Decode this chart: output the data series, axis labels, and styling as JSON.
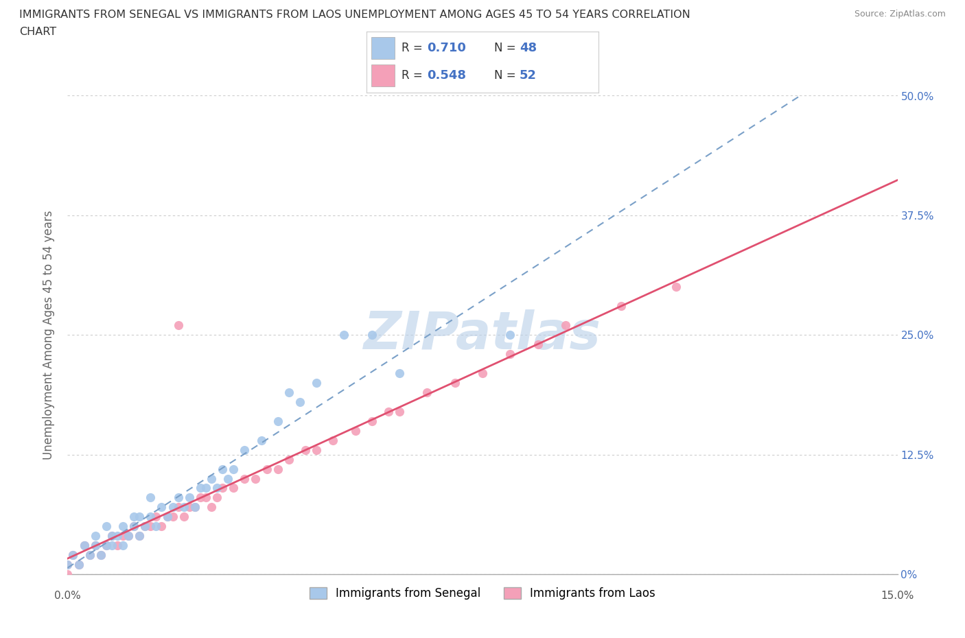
{
  "title_line1": "IMMIGRANTS FROM SENEGAL VS IMMIGRANTS FROM LAOS UNEMPLOYMENT AMONG AGES 45 TO 54 YEARS CORRELATION",
  "title_line2": "CHART",
  "source": "Source: ZipAtlas.com",
  "ylabel": "Unemployment Among Ages 45 to 54 years",
  "xlim": [
    -0.002,
    0.155
  ],
  "ylim": [
    -0.01,
    0.52
  ],
  "plot_xlim": [
    0.0,
    0.15
  ],
  "plot_ylim": [
    0.0,
    0.5
  ],
  "xtick_positions": [
    0.0,
    0.15
  ],
  "xticklabels": [
    "0.0%",
    "15.0%"
  ],
  "yticks": [
    0.0,
    0.125,
    0.25,
    0.375,
    0.5
  ],
  "yticklabels_right": [
    "0%",
    "12.5%",
    "25.0%",
    "37.5%",
    "50.0%"
  ],
  "senegal_marker_color": "#a8c8ea",
  "laos_marker_color": "#f4a0b8",
  "senegal_trend_color": "#4472c4",
  "laos_trend_color": "#e05070",
  "senegal_R": 0.71,
  "senegal_N": 48,
  "laos_R": 0.548,
  "laos_N": 52,
  "watermark": "ZIPatlas",
  "watermark_color": "#b8cfe8",
  "background_color": "#ffffff",
  "grid_color": "#cccccc",
  "senegal_x": [
    0.0,
    0.001,
    0.002,
    0.003,
    0.004,
    0.005,
    0.005,
    0.006,
    0.007,
    0.007,
    0.008,
    0.008,
    0.009,
    0.01,
    0.01,
    0.011,
    0.012,
    0.012,
    0.013,
    0.013,
    0.014,
    0.015,
    0.015,
    0.016,
    0.017,
    0.018,
    0.019,
    0.02,
    0.021,
    0.022,
    0.023,
    0.024,
    0.025,
    0.026,
    0.027,
    0.028,
    0.029,
    0.03,
    0.032,
    0.035,
    0.038,
    0.04,
    0.042,
    0.045,
    0.05,
    0.055,
    0.06,
    0.08
  ],
  "senegal_y": [
    0.01,
    0.02,
    0.01,
    0.03,
    0.02,
    0.03,
    0.04,
    0.02,
    0.03,
    0.05,
    0.03,
    0.04,
    0.04,
    0.05,
    0.03,
    0.04,
    0.05,
    0.06,
    0.04,
    0.06,
    0.05,
    0.06,
    0.08,
    0.05,
    0.07,
    0.06,
    0.07,
    0.08,
    0.07,
    0.08,
    0.07,
    0.09,
    0.09,
    0.1,
    0.09,
    0.11,
    0.1,
    0.11,
    0.13,
    0.14,
    0.16,
    0.19,
    0.18,
    0.2,
    0.25,
    0.25,
    0.21,
    0.25
  ],
  "laos_x": [
    0.0,
    0.0,
    0.001,
    0.002,
    0.003,
    0.004,
    0.005,
    0.006,
    0.007,
    0.008,
    0.009,
    0.01,
    0.011,
    0.012,
    0.013,
    0.014,
    0.015,
    0.016,
    0.017,
    0.018,
    0.019,
    0.02,
    0.021,
    0.022,
    0.023,
    0.024,
    0.025,
    0.026,
    0.027,
    0.028,
    0.03,
    0.032,
    0.034,
    0.036,
    0.038,
    0.04,
    0.043,
    0.045,
    0.048,
    0.052,
    0.055,
    0.058,
    0.06,
    0.065,
    0.07,
    0.075,
    0.08,
    0.085,
    0.09,
    0.1,
    0.11,
    0.02
  ],
  "laos_y": [
    0.01,
    0.0,
    0.02,
    0.01,
    0.03,
    0.02,
    0.03,
    0.02,
    0.03,
    0.04,
    0.03,
    0.04,
    0.04,
    0.05,
    0.04,
    0.05,
    0.05,
    0.06,
    0.05,
    0.06,
    0.06,
    0.07,
    0.06,
    0.07,
    0.07,
    0.08,
    0.08,
    0.07,
    0.08,
    0.09,
    0.09,
    0.1,
    0.1,
    0.11,
    0.11,
    0.12,
    0.13,
    0.13,
    0.14,
    0.15,
    0.16,
    0.17,
    0.17,
    0.19,
    0.2,
    0.21,
    0.23,
    0.24,
    0.26,
    0.28,
    0.3,
    0.26
  ]
}
